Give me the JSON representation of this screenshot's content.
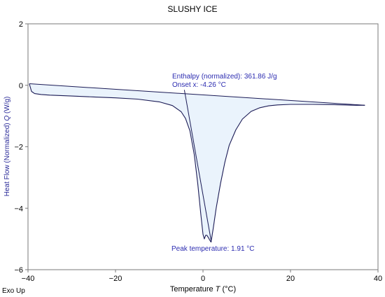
{
  "chart_data": {
    "type": "line",
    "title": "SLUSHY ICE",
    "xlabel": "Temperature",
    "xlabel_symbol": "T",
    "xlabel_unit": "(°C)",
    "ylabel": "Heat Flow (Normalized)",
    "ylabel_symbol": "Q",
    "ylabel_unit": "(W/g)",
    "xlim": [
      -40,
      40
    ],
    "ylim": [
      -6,
      2
    ],
    "x_ticks": [
      -40,
      -20,
      0,
      20,
      40
    ],
    "x_tick_labels": [
      "−40",
      "−20",
      "0",
      "20",
      "40"
    ],
    "y_ticks": [
      2,
      0,
      -2,
      -4,
      -6
    ],
    "y_tick_labels": [
      "2",
      "0",
      "−2",
      "−4",
      "−6"
    ],
    "grid": false,
    "legend": "none",
    "corner_label": "Exo Up",
    "series": [
      {
        "x": [
          -39.7,
          -39.2,
          -38.5,
          -37.0,
          -35.0,
          -30.0,
          -25.0,
          -20.0,
          -15.0,
          -10.0,
          -7.0,
          -5.0,
          -4.0,
          -3.0,
          -2.0,
          -1.2,
          -0.5,
          0.0,
          0.3,
          0.6,
          0.9,
          1.2,
          1.5,
          1.8,
          2.0,
          2.4,
          3.0,
          4.0,
          5.0,
          6.0,
          7.5,
          9.0,
          11.0,
          13.0,
          15.0,
          17.0,
          20.0,
          25.0,
          30.0,
          35.0,
          37.0
        ],
        "y": [
          0.05,
          -0.2,
          -0.27,
          -0.3,
          -0.32,
          -0.35,
          -0.38,
          -0.41,
          -0.45,
          -0.54,
          -0.66,
          -0.86,
          -1.08,
          -1.48,
          -2.25,
          -3.2,
          -4.2,
          -4.85,
          -5.0,
          -4.88,
          -4.88,
          -4.95,
          -5.03,
          -5.1,
          -4.96,
          -4.6,
          -4.0,
          -3.2,
          -2.5,
          -1.95,
          -1.45,
          -1.1,
          -0.85,
          -0.73,
          -0.67,
          -0.64,
          -0.62,
          -0.62,
          -0.63,
          -0.65,
          -0.65
        ]
      }
    ],
    "baseline": {
      "x": [
        -39.7,
        37.0
      ],
      "y": [
        0.05,
        -0.65
      ]
    },
    "onset_line": {
      "x": [
        -4.26,
        1.91
      ],
      "y": [
        -0.15,
        -5.1
      ]
    },
    "peak": {
      "x": 1.91,
      "y": -5.1
    },
    "annotations": {
      "enthalpy": "Enthalpy (normalized): 361.86 J/g",
      "onset": "Onset x: -4.26 °C",
      "peak": "Peak temperature: 1.91 °C"
    },
    "colors": {
      "curve": "#1a1a55",
      "fill": "#eaf3fc",
      "annotation_text": "#2b2bb0",
      "ylabel_text": "#2b2b99"
    }
  }
}
